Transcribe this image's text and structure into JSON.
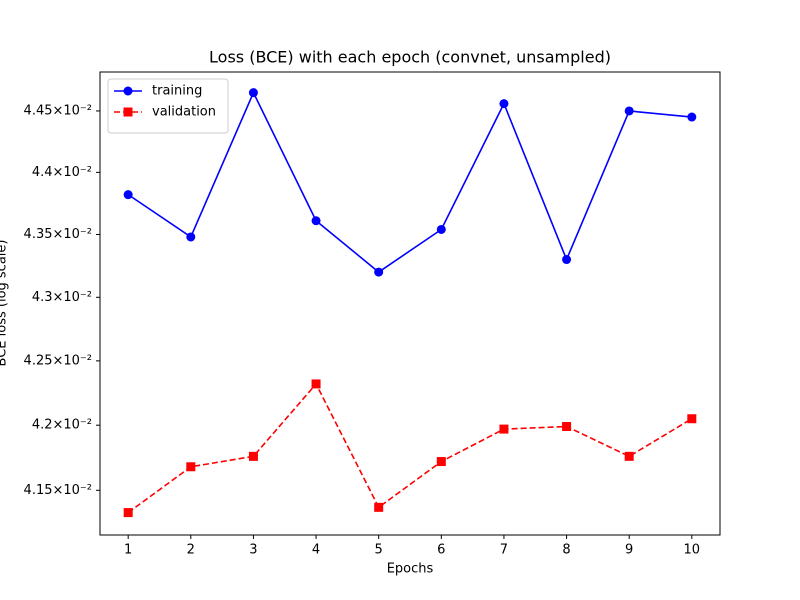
{
  "chart_data": {
    "type": "line",
    "title": "Loss (BCE) with each epoch (convnet, unsampled)",
    "x_label": "Epochs",
    "y_label": "BCE loss (log scale)",
    "x": [
      1,
      2,
      3,
      4,
      5,
      6,
      7,
      8,
      9,
      10
    ],
    "series": [
      {
        "name": "training",
        "color": "#0000ff",
        "marker": "circle",
        "dash": "solid",
        "values": [
          0.04382,
          0.04348,
          0.04465,
          0.04361,
          0.0432,
          0.04354,
          0.04456,
          0.0433,
          0.0445,
          0.04445
        ]
      },
      {
        "name": "validation",
        "color": "#ff0000",
        "marker": "square",
        "dash": "dashed",
        "values": [
          0.04133,
          0.04168,
          0.04176,
          0.04232,
          0.04137,
          0.04172,
          0.04197,
          0.04199,
          0.04176,
          0.04205
        ]
      }
    ],
    "xlim": [
      0.55,
      10.45
    ],
    "xticks": [
      1,
      2,
      3,
      4,
      5,
      6,
      7,
      8,
      9,
      10
    ],
    "ylim": [
      0.04116,
      0.04482
    ],
    "yscale": "log",
    "yticks": [
      {
        "value": 0.0415,
        "label": "4.15×10⁻²"
      },
      {
        "value": 0.042,
        "label": "4.2×10⁻²"
      },
      {
        "value": 0.0425,
        "label": "4.25×10⁻²"
      },
      {
        "value": 0.043,
        "label": "4.3×10⁻²"
      },
      {
        "value": 0.0435,
        "label": "4.35×10⁻²"
      },
      {
        "value": 0.044,
        "label": "4.4×10⁻²"
      },
      {
        "value": 0.0445,
        "label": "4.45×10⁻²"
      }
    ],
    "grid": false,
    "legend": "upper-left"
  }
}
